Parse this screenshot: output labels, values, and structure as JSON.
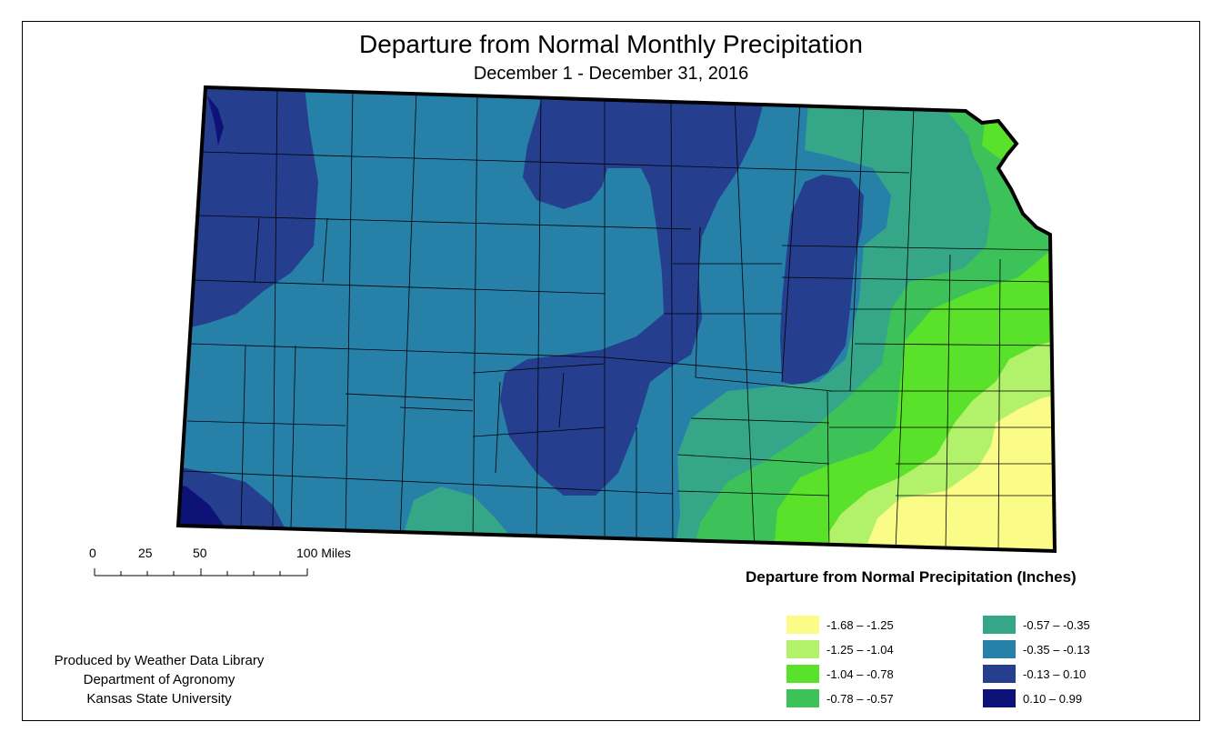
{
  "title": "Departure from Normal Monthly Precipitation",
  "subtitle": "December 1 - December 31, 2016",
  "scale_bar": {
    "labels": [
      "0",
      "25",
      "50",
      "100 Miles"
    ]
  },
  "legend": {
    "title": "Departure from Normal Precipitation (Inches)",
    "items": [
      {
        "label": "-1.68 – -1.25",
        "color": "#fbfb88"
      },
      {
        "label": "-1.25 – -1.04",
        "color": "#b2f26a"
      },
      {
        "label": "-1.04 – -0.78",
        "color": "#5ae12a"
      },
      {
        "label": "-0.78 – -0.57",
        "color": "#3dc25a"
      },
      {
        "label": "-0.57 – -0.35",
        "color": "#35a688"
      },
      {
        "label": "-0.35 – -0.13",
        "color": "#2780a8"
      },
      {
        "label": "-0.13 – 0.10",
        "color": "#253f8e"
      },
      {
        "label": "0.10 – 0.99",
        "color": "#0d1276"
      }
    ]
  },
  "credits": {
    "line1": "Produced by Weather Data Library",
    "line2": "Department of Agronomy",
    "line3": "Kansas State University"
  }
}
